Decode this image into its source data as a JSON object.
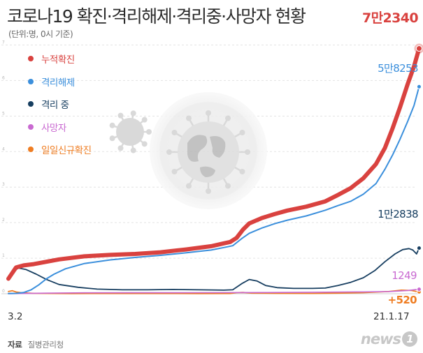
{
  "title": "코로나19 확진·격리해제·격리중·사망자 현황",
  "unit": "(단위:명, 0시 기준)",
  "source_label": "자료",
  "source": "질병관리청",
  "logo": "news",
  "logo_mark": "1",
  "chart_data": {
    "type": "line",
    "x": [
      "2020-03-02",
      "2021-01-17"
    ],
    "xlim": [
      "2020-03-02",
      "2021-01-17"
    ],
    "x_ticks": [
      "3.2",
      "21.1.17"
    ],
    "ylim": [
      0,
      75000
    ],
    "y_ticks": [
      0,
      10000,
      20000,
      30000,
      40000,
      50000,
      60000,
      70000
    ],
    "y_tick_labels": [
      "0",
      "1",
      "2",
      "3",
      "4",
      "5",
      "6",
      "7"
    ],
    "grid": true,
    "legend_position": "top-left",
    "series": [
      {
        "name": "누적확진",
        "color": "#d9423f",
        "end_label": "7만2340",
        "values": [
          [
            0,
            4212
          ],
          [
            6,
            7382
          ],
          [
            12,
            7979
          ],
          [
            20,
            8326
          ],
          [
            40,
            9661
          ],
          [
            60,
            10530
          ],
          [
            80,
            10909
          ],
          [
            100,
            11190
          ],
          [
            120,
            11668
          ],
          [
            140,
            12438
          ],
          [
            160,
            13374
          ],
          [
            170,
            14175
          ],
          [
            175,
            14562
          ],
          [
            180,
            15700
          ],
          [
            185,
            18000
          ],
          [
            190,
            19800
          ],
          [
            200,
            21300
          ],
          [
            210,
            22400
          ],
          [
            220,
            23400
          ],
          [
            235,
            24500
          ],
          [
            250,
            26000
          ],
          [
            260,
            27800
          ],
          [
            270,
            29700
          ],
          [
            280,
            32500
          ],
          [
            290,
            36500
          ],
          [
            297,
            41000
          ],
          [
            303,
            46500
          ],
          [
            309,
            52500
          ],
          [
            315,
            59000
          ],
          [
            320,
            64000
          ],
          [
            324,
            69000
          ],
          [
            321,
            65000
          ],
          [
            322,
            66800
          ],
          [
            323,
            68000
          ],
          [
            324,
            70000
          ],
          [
            321,
            66000
          ],
          [
            322,
            68500
          ],
          [
            323,
            70200
          ],
          [
            324,
            71500
          ],
          [
            320,
            64000
          ],
          [
            321,
            65500
          ],
          [
            322,
            67000
          ],
          [
            323,
            69200
          ],
          [
            324,
            72340
          ]
        ]
      },
      {
        "name": "격리해제",
        "color": "#3b8fdc",
        "end_label": "5만8253",
        "values": [
          [
            0,
            30
          ],
          [
            6,
            100
          ],
          [
            12,
            330
          ],
          [
            18,
            1100
          ],
          [
            24,
            2500
          ],
          [
            30,
            4200
          ],
          [
            36,
            5500
          ],
          [
            45,
            7000
          ],
          [
            60,
            8500
          ],
          [
            80,
            9500
          ],
          [
            100,
            10200
          ],
          [
            120,
            10800
          ],
          [
            140,
            11500
          ],
          [
            160,
            12300
          ],
          [
            170,
            13000
          ],
          [
            177,
            13500
          ],
          [
            184,
            15500
          ],
          [
            190,
            17000
          ],
          [
            200,
            18500
          ],
          [
            210,
            19700
          ],
          [
            220,
            20700
          ],
          [
            235,
            21900
          ],
          [
            250,
            23500
          ],
          [
            260,
            24800
          ],
          [
            270,
            26000
          ],
          [
            280,
            28000
          ],
          [
            290,
            31000
          ],
          [
            297,
            35000
          ],
          [
            303,
            39000
          ],
          [
            309,
            43500
          ],
          [
            315,
            48500
          ],
          [
            320,
            53000
          ],
          [
            324,
            58253
          ]
        ]
      },
      {
        "name": "격리 중",
        "color": "#173e60",
        "end_label": "1만2838",
        "values": [
          [
            0,
            4100
          ],
          [
            4,
            6400
          ],
          [
            8,
            7200
          ],
          [
            14,
            6800
          ],
          [
            22,
            5500
          ],
          [
            30,
            4000
          ],
          [
            40,
            2600
          ],
          [
            55,
            1800
          ],
          [
            70,
            1300
          ],
          [
            90,
            1100
          ],
          [
            110,
            1100
          ],
          [
            130,
            1200
          ],
          [
            150,
            1100
          ],
          [
            170,
            1000
          ],
          [
            177,
            1100
          ],
          [
            184,
            2800
          ],
          [
            190,
            4000
          ],
          [
            196,
            3600
          ],
          [
            203,
            2300
          ],
          [
            212,
            1700
          ],
          [
            225,
            1500
          ],
          [
            240,
            1500
          ],
          [
            250,
            1600
          ],
          [
            260,
            2300
          ],
          [
            270,
            3200
          ],
          [
            280,
            4500
          ],
          [
            289,
            6500
          ],
          [
            297,
            9000
          ],
          [
            305,
            11200
          ],
          [
            311,
            12400
          ],
          [
            316,
            12700
          ],
          [
            319,
            12300
          ],
          [
            322,
            11200
          ],
          [
            324,
            12838
          ]
        ]
      },
      {
        "name": "사망자",
        "color": "#c96ad1",
        "end_label": "1249",
        "values": [
          [
            0,
            22
          ],
          [
            30,
            150
          ],
          [
            60,
            250
          ],
          [
            100,
            280
          ],
          [
            150,
            300
          ],
          [
            200,
            340
          ],
          [
            250,
            440
          ],
          [
            280,
            520
          ],
          [
            300,
            600
          ],
          [
            315,
            900
          ],
          [
            324,
            1249
          ]
        ]
      },
      {
        "name": "일일신규확진",
        "color": "#ef7d22",
        "end_label": "+520",
        "values": [
          [
            0,
            600
          ],
          [
            3,
            850
          ],
          [
            6,
            500
          ],
          [
            10,
            300
          ],
          [
            20,
            100
          ],
          [
            50,
            40
          ],
          [
            100,
            50
          ],
          [
            150,
            40
          ],
          [
            175,
            60
          ],
          [
            180,
            300
          ],
          [
            185,
            350
          ],
          [
            192,
            150
          ],
          [
            210,
            90
          ],
          [
            240,
            80
          ],
          [
            260,
            150
          ],
          [
            280,
            300
          ],
          [
            300,
            600
          ],
          [
            310,
            1000
          ],
          [
            318,
            900
          ],
          [
            322,
            600
          ],
          [
            324,
            520
          ]
        ]
      }
    ]
  }
}
